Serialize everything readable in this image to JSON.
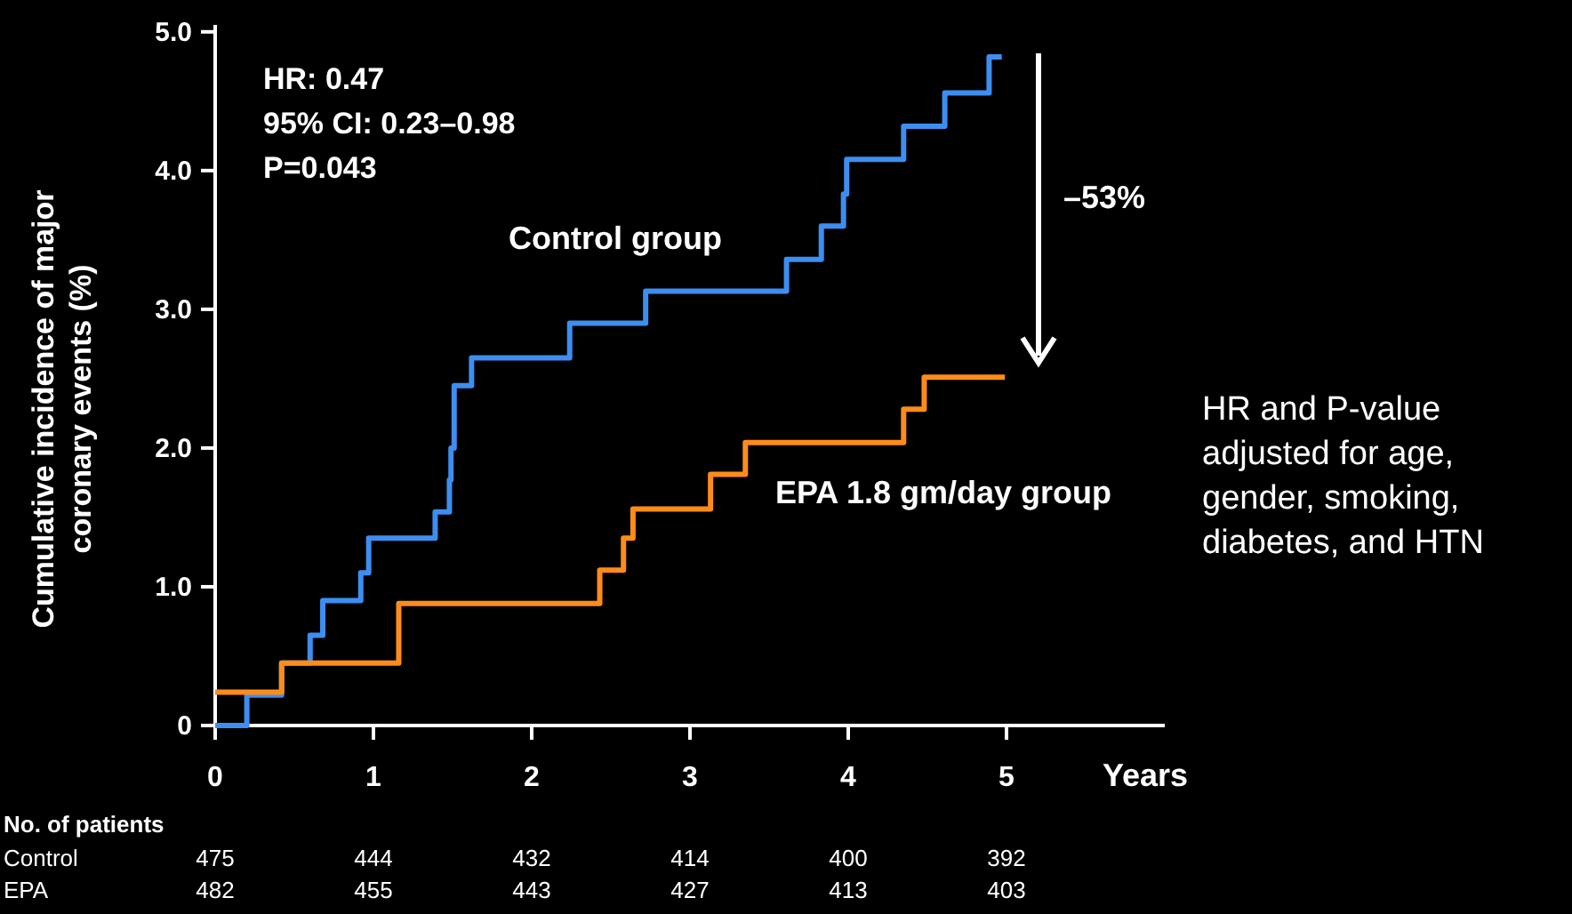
{
  "chart_data": {
    "type": "step",
    "xlabel": "Years",
    "ylabel": "Cumulative incidence of major coronary events (%)",
    "xlim": [
      0,
      6
    ],
    "ylim": [
      0,
      5.05
    ],
    "xticks": [
      0,
      1,
      2,
      3,
      4,
      5
    ],
    "yticks": [
      {
        "value": 0,
        "label": "0"
      },
      {
        "value": 1,
        "label": "1.0"
      },
      {
        "value": 2,
        "label": "2.0"
      },
      {
        "value": 3,
        "label": "3.0"
      },
      {
        "value": 4,
        "label": "4.0"
      },
      {
        "value": 5,
        "label": "5.0"
      }
    ],
    "grid": false,
    "marker": "none",
    "line_style": "solid",
    "series": [
      {
        "name": "Control group",
        "color": "#3d8ef0",
        "x": [
          0,
          0.2,
          0.42,
          0.6,
          0.68,
          0.92,
          0.97,
          1.39,
          1.48,
          1.49,
          1.51,
          1.62,
          2.24,
          2.72,
          3.61,
          3.83,
          3.97,
          3.99,
          4.35,
          4.61,
          4.89,
          4.97
        ],
        "values": [
          0,
          0.22,
          0.45,
          0.65,
          0.9,
          1.1,
          1.35,
          1.54,
          1.77,
          2.0,
          2.45,
          2.65,
          2.9,
          3.13,
          3.36,
          3.6,
          3.83,
          4.08,
          4.32,
          4.56,
          4.82,
          4.82
        ]
      },
      {
        "name": "EPA 1.8 gm/day group",
        "color": "#ff8c1a",
        "x": [
          0,
          0.42,
          1.16,
          2.43,
          2.58,
          2.64,
          3.13,
          3.35,
          4.35,
          4.48,
          4.99
        ],
        "values": [
          0.24,
          0.45,
          0.88,
          1.12,
          1.35,
          1.56,
          1.81,
          2.04,
          2.28,
          2.51,
          2.51
        ]
      }
    ],
    "annotations": [
      "HR: 0.47",
      "95% CI: 0.23–0.98",
      "P=0.043",
      "–53%",
      "HR and P-value adjusted for age, gender, smoking, diabetes, and HTN",
      "No. of patients",
      "Control",
      "475",
      "444",
      "432",
      "414",
      "400",
      "392",
      "EPA",
      "482",
      "455",
      "443",
      "427",
      "413",
      "403"
    ]
  }
}
